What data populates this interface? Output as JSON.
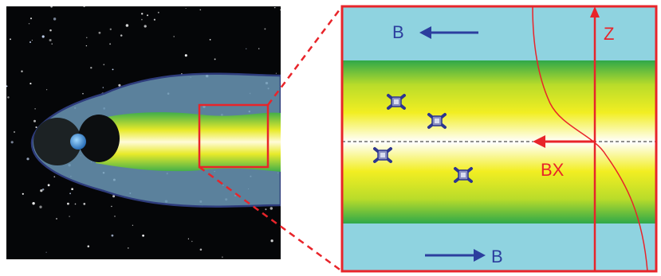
{
  "labels": {
    "b_top": "B",
    "b_bottom": "B",
    "z_axis": "Z",
    "bx": "BX"
  },
  "colors": {
    "lobe_blue": "#8fd3e0",
    "sheet_green": "#2fa84a",
    "sheet_yellow": "#f2ee22",
    "center_white": "#ffffff",
    "frame_red": "#e8242a",
    "arrow_blue": "#2c3e9e",
    "space_black": "#050608",
    "magnetosphere_blue": "#6b98b6"
  },
  "icons": {
    "satellite": "satellite-icon",
    "earth": "earth-icon"
  },
  "satellite_count": 4
}
